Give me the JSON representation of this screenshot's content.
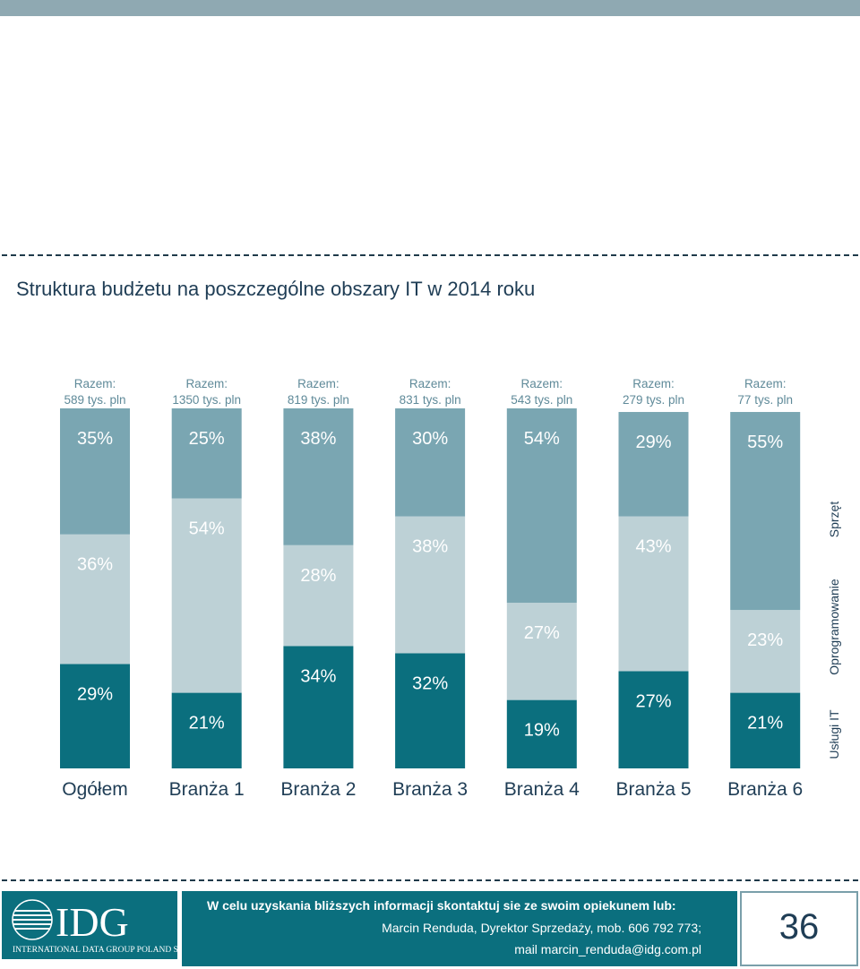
{
  "title": "Struktura budżetu na poszczególne obszary IT w 2014 roku",
  "colors": {
    "sprzet": "#7aa6b2",
    "oprogramowanie": "#bdd1d6",
    "uslugi": "#0b6f7e",
    "text_light": "#ffffff",
    "text_dark": "#5f8a99"
  },
  "chart_data": {
    "type": "bar",
    "stacked": true,
    "categories": [
      "Ogółem",
      "Branża 1",
      "Branża 2",
      "Branża 3",
      "Branża 4",
      "Branża 5",
      "Branża 6"
    ],
    "totals": [
      "Razem:\n589 tys. pln",
      "Razem:\n1350 tys. pln",
      "Razem:\n819 tys. pln",
      "Razem:\n831 tys. pln",
      "Razem:\n543 tys. pln",
      "Razem:\n279 tys. pln",
      "Razem:\n77 tys. pln"
    ],
    "series": [
      {
        "name": "Usługi IT",
        "values": [
          29,
          21,
          34,
          32,
          19,
          27,
          21
        ],
        "labels": [
          "29%",
          "21%",
          "34%",
          "32%",
          "19%",
          "27%",
          "21%"
        ]
      },
      {
        "name": "Oprogramowanie",
        "values": [
          36,
          54,
          28,
          38,
          27,
          43,
          23
        ],
        "labels": [
          "36%",
          "54%",
          "28%",
          "38%",
          "27%",
          "43%",
          "23%"
        ]
      },
      {
        "name": "Sprzęt",
        "values": [
          35,
          25,
          38,
          30,
          54,
          29,
          55
        ],
        "labels": [
          "35%",
          "25%",
          "38%",
          "30%",
          "54%",
          "29%",
          "55%"
        ]
      }
    ],
    "ylim": [
      0,
      100
    ],
    "legend_placement": "right"
  },
  "footer": {
    "logo_text": "IDG",
    "logo_sub": "INTERNATIONAL DATA GROUP POLAND SA",
    "contact_line1": "W celu uzyskania bliższych informacji skontaktuj sie ze swoim opiekunem lub:",
    "contact_line2": "Marcin Renduda, Dyrektor Sprzedaży, mob. 606 792 773;",
    "contact_line3": "mail marcin_renduda@idg.com.pl",
    "page_number": "36"
  }
}
